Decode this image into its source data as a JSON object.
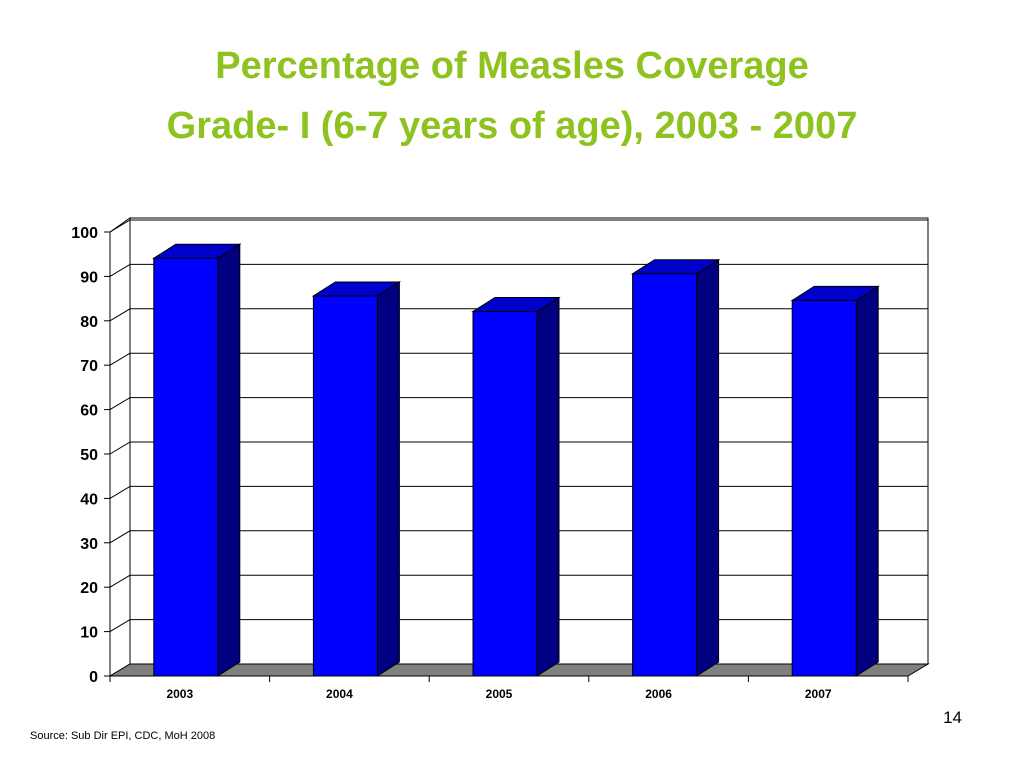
{
  "slide": {
    "title_line1": "Percentage of Measles Coverage",
    "title_line2": "Grade- I (6-7 years of age), 2003 - 2007",
    "title_color": "#8DC21F",
    "source": "Source: Sub Dir EPI, CDC, MoH  2008",
    "page_number": "14"
  },
  "chart_data": {
    "type": "bar",
    "categories": [
      "2003",
      "2004",
      "2005",
      "2006",
      "2007"
    ],
    "values": [
      95,
      86.5,
      83,
      91.5,
      85.5
    ],
    "title": "",
    "xlabel": "",
    "ylabel": "",
    "ylim": [
      0,
      100
    ],
    "yticks": [
      "0",
      "10",
      "20",
      "30",
      "40",
      "50",
      "60",
      "70",
      "80",
      "90",
      "100"
    ],
    "grid": true,
    "legend": "none",
    "style": "3d",
    "colors": {
      "bar_front": "#0000FF",
      "bar_side": "#000080",
      "bar_top": "#0000CC",
      "floor": "#808080"
    }
  }
}
